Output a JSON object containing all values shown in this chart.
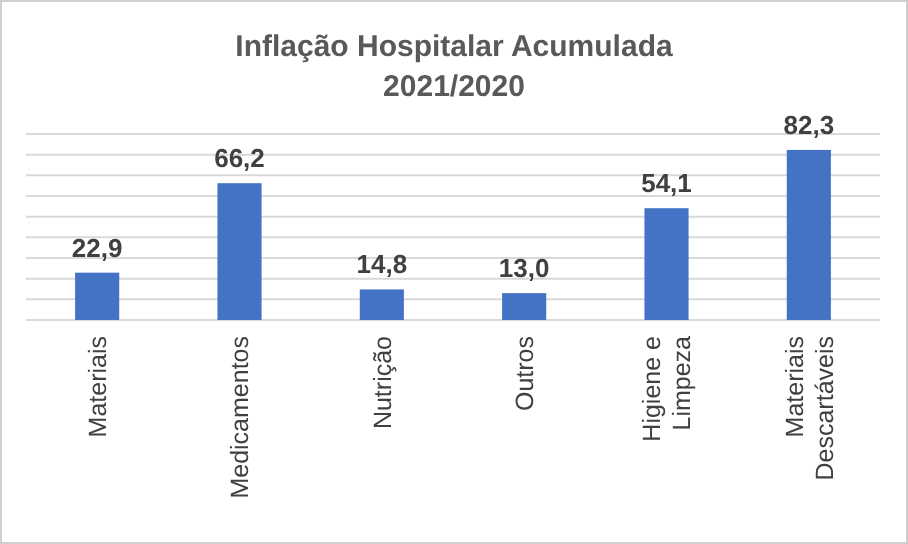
{
  "chart_data": {
    "type": "bar",
    "title": "Inflação Hospitalar Acumulada",
    "subtitle": "2021/2020",
    "categories": [
      "Materiais",
      "Medicamentos",
      "Nutrição",
      "Outros",
      "Higiene e\nLimpeza",
      "Materiais\nDescartáveis"
    ],
    "values": [
      22.9,
      66.2,
      14.8,
      13.0,
      54.1,
      82.3
    ],
    "value_labels": [
      "22,9",
      "66,2",
      "14,8",
      "13,0",
      "54,1",
      "82,3"
    ],
    "color": "#4472c4",
    "ylim": [
      0,
      90
    ],
    "yticks": [
      {
        "value": 0,
        "label": null
      },
      {
        "value": 10,
        "label": null
      },
      {
        "value": 20,
        "label": null
      },
      {
        "value": 30,
        "label": null
      },
      {
        "value": 40,
        "label": null
      },
      {
        "value": 50,
        "label": null
      },
      {
        "value": 60,
        "label": null
      },
      {
        "value": 70,
        "label": null
      },
      {
        "value": 80,
        "label": null
      },
      {
        "value": 90,
        "label": null
      }
    ],
    "grid": "y",
    "tick_labels": "x"
  }
}
